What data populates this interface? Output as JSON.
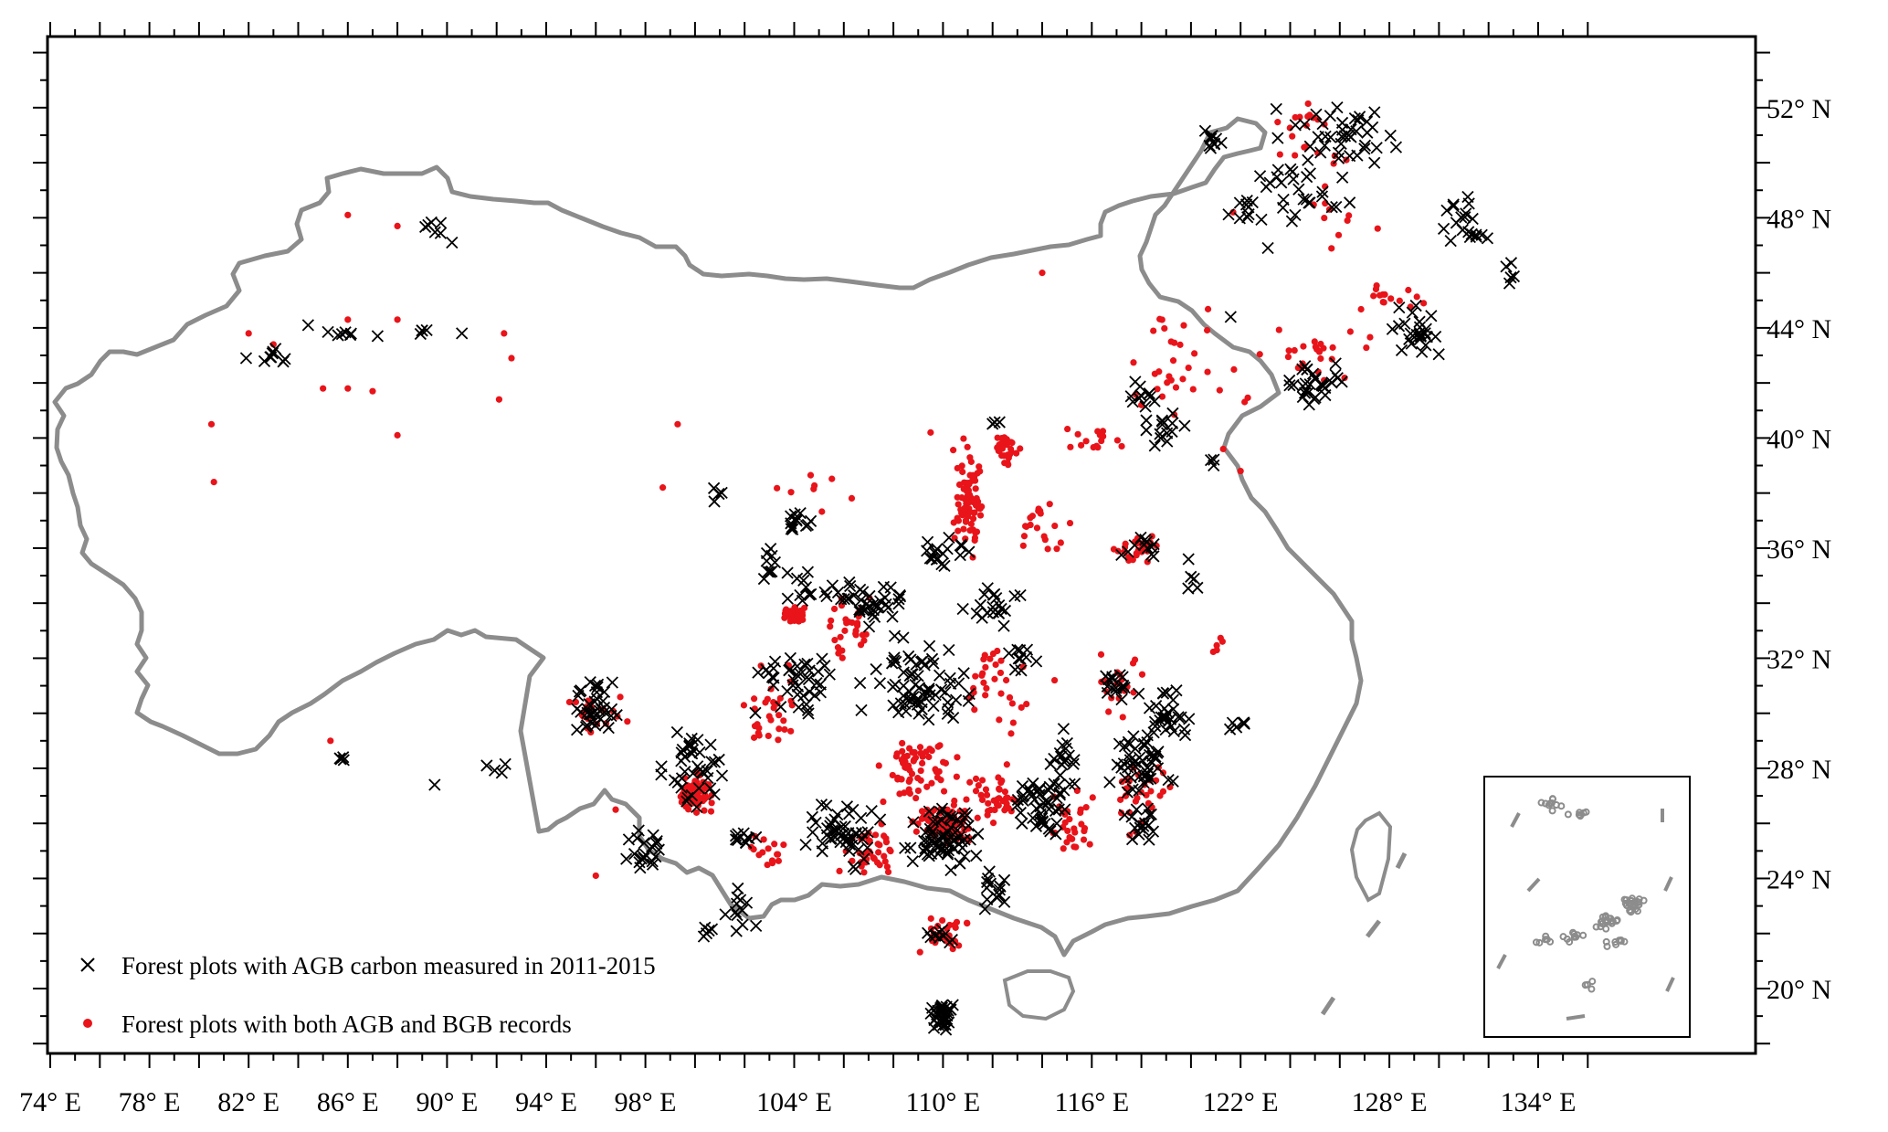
{
  "x_axis": {
    "ticks": [
      {
        "value": 74,
        "label": "74° E"
      },
      {
        "value": 78,
        "label": "78° E"
      },
      {
        "value": 82,
        "label": "82° E"
      },
      {
        "value": 86,
        "label": "86° E"
      },
      {
        "value": 90,
        "label": "90° E"
      },
      {
        "value": 94,
        "label": "94° E"
      },
      {
        "value": 98,
        "label": "98° E"
      },
      {
        "value": 104,
        "label": "104° E"
      },
      {
        "value": 110,
        "label": "110° E"
      },
      {
        "value": 116,
        "label": "116° E"
      },
      {
        "value": 122,
        "label": "122° E"
      },
      {
        "value": 128,
        "label": "128° E"
      },
      {
        "value": 134,
        "label": "134° E"
      }
    ]
  },
  "y_axis": {
    "ticks": [
      {
        "value": 52,
        "label": "52° N"
      },
      {
        "value": 48,
        "label": "48° N"
      },
      {
        "value": 44,
        "label": "44° N"
      },
      {
        "value": 40,
        "label": "40° N"
      },
      {
        "value": 36,
        "label": "36° N"
      },
      {
        "value": 32,
        "label": "32° N"
      },
      {
        "value": 28,
        "label": "28° N"
      },
      {
        "value": 24,
        "label": "24° N"
      },
      {
        "value": 20,
        "label": "20° N"
      }
    ]
  },
  "legend": {
    "items": [
      {
        "symbol": "x-mark",
        "label": "Forest plots with AGB carbon measured in 2011-2015"
      },
      {
        "symbol": "red-dot",
        "label": "Forest plots with both AGB and BGB records"
      }
    ]
  },
  "colors": {
    "agb_marker": "#000000",
    "bgb_marker": "#e8141a",
    "border": "#8c8c8c"
  },
  "clusters": {
    "agb": [
      [
        126,
        51,
        3,
        1.5,
        40
      ],
      [
        124,
        49,
        3,
        2,
        30
      ],
      [
        131,
        48,
        1.5,
        1.5,
        20
      ],
      [
        129,
        44,
        1.5,
        1.5,
        25
      ],
      [
        125,
        42,
        1.5,
        1,
        30
      ],
      [
        119,
        40.5,
        1.5,
        1,
        15
      ],
      [
        118,
        41.5,
        1,
        1,
        10
      ],
      [
        122,
        48,
        1,
        1,
        6
      ],
      [
        121,
        50.8,
        1,
        1,
        10
      ],
      [
        133,
        46,
        0.5,
        0.5,
        5
      ],
      [
        89.5,
        47.6,
        1,
        0.5,
        6
      ],
      [
        86,
        43.8,
        1,
        0.3,
        6
      ],
      [
        83,
        43,
        1,
        0.5,
        8
      ],
      [
        89,
        43.8,
        1,
        0.3,
        4
      ],
      [
        104,
        37,
        1,
        1,
        12
      ],
      [
        103,
        35.5,
        1,
        1,
        10
      ],
      [
        101,
        38,
        0.6,
        0.5,
        4
      ],
      [
        107,
        34,
        2,
        1,
        40
      ],
      [
        112,
        34,
        1.5,
        1,
        20
      ],
      [
        110,
        36,
        1.5,
        1,
        18
      ],
      [
        109,
        31,
        3,
        2,
        70
      ],
      [
        104,
        31,
        2,
        1.5,
        40
      ],
      [
        96,
        30,
        1.5,
        1,
        30
      ],
      [
        100,
        28,
        1.5,
        2,
        40
      ],
      [
        98,
        25,
        1,
        1,
        20
      ],
      [
        102,
        23,
        1,
        1.2,
        12
      ],
      [
        102,
        25.5,
        1,
        0.5,
        10
      ],
      [
        106,
        25.5,
        2,
        1.5,
        50
      ],
      [
        110,
        25.5,
        2,
        1.5,
        70
      ],
      [
        114,
        26.5,
        1.5,
        1.5,
        50
      ],
      [
        118,
        28,
        1.5,
        2,
        50
      ],
      [
        119,
        30,
        1.2,
        1.2,
        30
      ],
      [
        117,
        31,
        1,
        1,
        15
      ],
      [
        118,
        36,
        1,
        0.6,
        12
      ],
      [
        115,
        28.5,
        1,
        1,
        15
      ],
      [
        110,
        19,
        0.7,
        0.6,
        30
      ],
      [
        110,
        22,
        1,
        0.6,
        10
      ],
      [
        112,
        23.5,
        1,
        1,
        15
      ],
      [
        118,
        26,
        1,
        1,
        15
      ],
      [
        86,
        28.5,
        0.6,
        0.3,
        4
      ],
      [
        92,
        28,
        0.6,
        0.5,
        3
      ],
      [
        100.5,
        22,
        0.4,
        0.3,
        5
      ],
      [
        96,
        31,
        1,
        0.4,
        8
      ],
      [
        122,
        29.5,
        0.6,
        0.5,
        6
      ],
      [
        120,
        34.8,
        0.4,
        0.4,
        4
      ],
      [
        112,
        40.5,
        0.5,
        0.5,
        3
      ],
      [
        104.5,
        34.5,
        1.5,
        1,
        10
      ],
      [
        113,
        32,
        1,
        1,
        10
      ],
      [
        121,
        39,
        0.4,
        0.4,
        3
      ]
    ],
    "bgb": [
      [
        111,
        38,
        0.8,
        2.5,
        80
      ],
      [
        112.5,
        39.5,
        0.7,
        0.8,
        30
      ],
      [
        104,
        33.6,
        0.7,
        0.4,
        50
      ],
      [
        100,
        27,
        0.8,
        1,
        70
      ],
      [
        110,
        26,
        1.5,
        1,
        90
      ],
      [
        109,
        28,
        2,
        1.5,
        60
      ],
      [
        112,
        27,
        1.5,
        1.5,
        40
      ],
      [
        107,
        25,
        1.5,
        1.5,
        40
      ],
      [
        110,
        22,
        1.5,
        1,
        30
      ],
      [
        115,
        26,
        1.5,
        1.5,
        30
      ],
      [
        118,
        27,
        1.5,
        2,
        30
      ],
      [
        117,
        31,
        1.5,
        1.5,
        20
      ],
      [
        112,
        31,
        2,
        2,
        30
      ],
      [
        106,
        33,
        2,
        1.5,
        30
      ],
      [
        114,
        37,
        1.5,
        1.5,
        20
      ],
      [
        118,
        36,
        1.5,
        1,
        15
      ],
      [
        116,
        40,
        2,
        1,
        15
      ],
      [
        120,
        42,
        3,
        1.5,
        20
      ],
      [
        125,
        43,
        3,
        1.5,
        25
      ],
      [
        128,
        45,
        2,
        1,
        15
      ],
      [
        126,
        48,
        2,
        1.5,
        10
      ],
      [
        125,
        51,
        2.5,
        1.5,
        20
      ],
      [
        96,
        30,
        1.5,
        1,
        20
      ],
      [
        103,
        30,
        2,
        2,
        30
      ],
      [
        103,
        25,
        1.5,
        1,
        15
      ],
      [
        119,
        44,
        3,
        1.5,
        10
      ],
      [
        118,
        36,
        1,
        0.5,
        10
      ],
      [
        105,
        38,
        2,
        1.5,
        8
      ],
      [
        121,
        32.5,
        0.6,
        0.5,
        5
      ]
    ],
    "agb_fixed": [
      [
        81.9,
        42.9
      ],
      [
        84.4,
        44.1
      ],
      [
        87.2,
        43.7
      ],
      [
        90.6,
        43.8
      ],
      [
        90.2,
        47.1
      ],
      [
        91.6,
        28.1
      ],
      [
        89.5,
        27.4
      ],
      [
        124.2,
        48.1
      ],
      [
        123.1,
        46.9
      ],
      [
        121.6,
        44.4
      ],
      [
        119.9,
        35.6
      ]
    ],
    "bgb_fixed": [
      [
        80.5,
        40.5
      ],
      [
        80.6,
        38.4
      ],
      [
        88,
        40.1
      ],
      [
        88,
        44.3
      ],
      [
        86,
        44.3
      ],
      [
        82,
        43.8
      ],
      [
        92.3,
        43.8
      ],
      [
        92.6,
        42.9
      ],
      [
        83,
        43.4
      ],
      [
        85,
        41.8
      ],
      [
        86,
        41.8
      ],
      [
        87,
        41.7
      ],
      [
        99.3,
        40.5
      ],
      [
        98.7,
        38.2
      ],
      [
        86,
        48.1
      ],
      [
        88,
        47.7
      ],
      [
        92.1,
        41.4
      ],
      [
        96.8,
        26.5
      ],
      [
        96,
        24.1
      ],
      [
        85.3,
        29
      ],
      [
        121.7,
        48.2
      ],
      [
        118,
        41.2
      ],
      [
        114.5,
        31.2
      ],
      [
        121.3,
        39.6
      ],
      [
        119.2,
        43.5
      ],
      [
        114,
        46
      ],
      [
        122,
        38.8
      ],
      [
        109.5,
        40.2
      ]
    ]
  }
}
